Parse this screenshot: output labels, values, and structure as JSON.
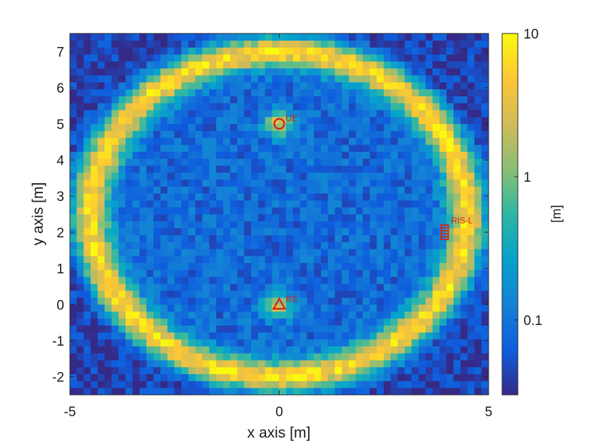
{
  "chart_data": {
    "type": "heatmap",
    "title": "",
    "xlabel": "x axis [m]",
    "ylabel": "y axis [m]",
    "xlim": [
      -5,
      5
    ],
    "ylim": [
      -2.5,
      7.5
    ],
    "x_ticks": [
      -5,
      0,
      5
    ],
    "x_tick_labels": [
      "-5",
      "0",
      "5"
    ],
    "y_ticks": [
      -2,
      -1,
      0,
      1,
      2,
      3,
      4,
      5,
      6,
      7
    ],
    "y_tick_labels": [
      "-2",
      "-1",
      "0",
      "1",
      "2",
      "3",
      "4",
      "5",
      "6",
      "7"
    ],
    "grid": false,
    "colormap": "parula",
    "colorbar": {
      "label": "[m]",
      "scale": "log",
      "range": [
        0.03,
        10
      ],
      "ticks": [
        0.1,
        1,
        10
      ],
      "tick_labels": [
        "0.1",
        "1",
        "10"
      ]
    },
    "field": {
      "description_of_pattern": "ring",
      "ring_center": [
        0,
        2.5
      ],
      "ring_radius": 4.5,
      "ring_peak_value": 6,
      "interior_value": 0.08,
      "exterior_value": 0.04,
      "local_peaks": [
        {
          "x": 0,
          "y": 5,
          "value": 3
        },
        {
          "x": 0,
          "y": 0,
          "value": 2.5
        }
      ]
    },
    "markers": [
      {
        "label": "UE",
        "shape": "circle",
        "x": 0,
        "y": 5
      },
      {
        "label": "BS",
        "shape": "triangle",
        "x": 0,
        "y": 0
      },
      {
        "label": "RIS-L",
        "shape": "ris-array",
        "x": 3.95,
        "y": 2.0,
        "elements": 5,
        "y_span": [
          1.8,
          2.2
        ]
      }
    ],
    "marker_color": "#d42020"
  }
}
